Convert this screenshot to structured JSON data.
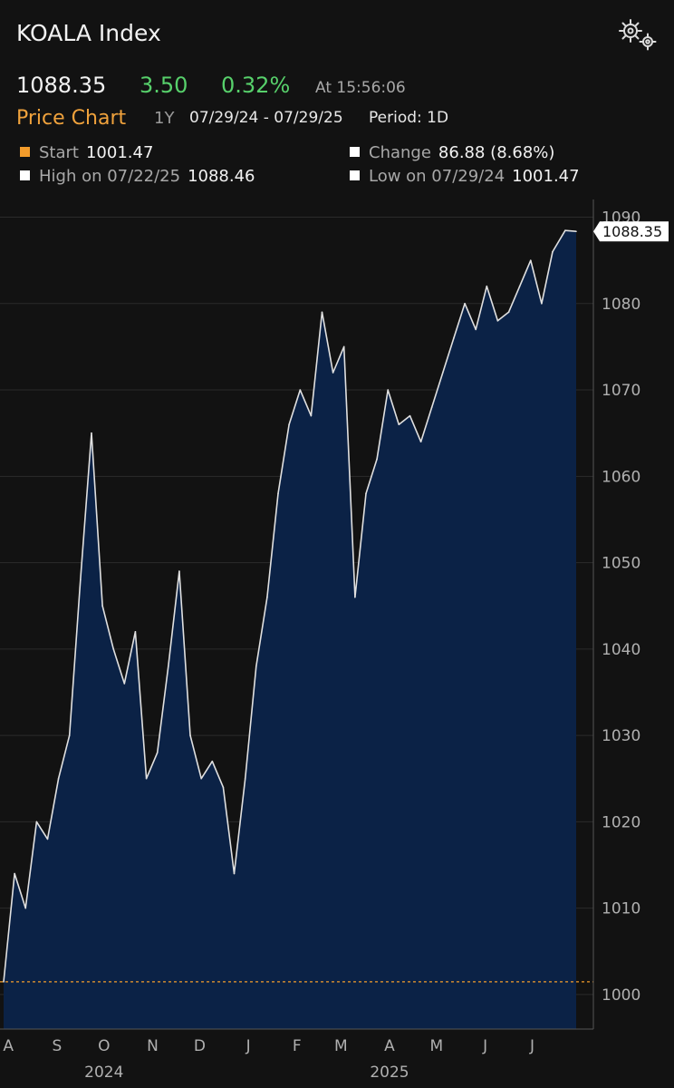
{
  "header": {
    "title": "KOALA Index",
    "settings_icon": "gear-icon"
  },
  "quote": {
    "last": "1088.35",
    "change": "3.50",
    "change_pct": "0.32%",
    "time": "At 15:56:06"
  },
  "subheader": {
    "title": "Price Chart",
    "range": "1Y",
    "dates": "07/29/24 - 07/29/25",
    "period": "Period: 1D"
  },
  "stats": {
    "start_label": "Start",
    "start_value": "1001.47",
    "change_label": "Change",
    "change_value": "86.88 (8.68%)",
    "high_label": "High on 07/22/25",
    "high_value": "1088.46",
    "low_label": "Low on 07/29/24",
    "low_value": "1001.47"
  },
  "colors": {
    "positive": "#57d06b",
    "accent": "#f0a23c",
    "start_marker": "#f39c2b",
    "fill": "#0b2246",
    "line": "#e0e0e0"
  },
  "chart_data": {
    "type": "area",
    "x": [
      "2024-07-29",
      "2024-08-05",
      "2024-08-12",
      "2024-08-19",
      "2024-08-26",
      "2024-09-02",
      "2024-09-09",
      "2024-09-16",
      "2024-09-23",
      "2024-09-30",
      "2024-10-07",
      "2024-10-14",
      "2024-10-21",
      "2024-10-28",
      "2024-11-04",
      "2024-11-11",
      "2024-11-18",
      "2024-11-25",
      "2024-12-02",
      "2024-12-09",
      "2024-12-16",
      "2024-12-23",
      "2024-12-30",
      "2025-01-06",
      "2025-01-13",
      "2025-01-20",
      "2025-01-27",
      "2025-02-03",
      "2025-02-10",
      "2025-02-17",
      "2025-02-24",
      "2025-03-03",
      "2025-03-10",
      "2025-03-17",
      "2025-03-24",
      "2025-03-31",
      "2025-04-07",
      "2025-04-14",
      "2025-04-21",
      "2025-04-28",
      "2025-05-05",
      "2025-05-12",
      "2025-05-19",
      "2025-05-26",
      "2025-06-02",
      "2025-06-09",
      "2025-06-16",
      "2025-06-23",
      "2025-06-30",
      "2025-07-07",
      "2025-07-14",
      "2025-07-22",
      "2025-07-29"
    ],
    "values": [
      1001.47,
      1014,
      1010,
      1020,
      1018,
      1025,
      1030,
      1048,
      1065,
      1045,
      1040,
      1036,
      1042,
      1025,
      1028,
      1038,
      1049,
      1030,
      1025,
      1027,
      1024,
      1014,
      1025,
      1038,
      1046,
      1058,
      1066,
      1070,
      1067,
      1079,
      1072,
      1075,
      1046,
      1058,
      1062,
      1070,
      1066,
      1067,
      1064,
      1068,
      1072,
      1076,
      1080,
      1077,
      1082,
      1078,
      1079,
      1082,
      1085,
      1080,
      1086,
      1088.46,
      1088.35
    ],
    "last_value": 1088.35,
    "reference_line": 1001.47,
    "ylim": [
      996,
      1091
    ],
    "y_ticks": [
      1000,
      1010,
      1020,
      1030,
      1040,
      1050,
      1060,
      1070,
      1080,
      1090
    ],
    "x_tick_labels": [
      {
        "label": "A",
        "date": "2024-08-01"
      },
      {
        "label": "S",
        "date": "2024-09-01"
      },
      {
        "label": "O",
        "date": "2024-10-01"
      },
      {
        "label": "N",
        "date": "2024-11-01"
      },
      {
        "label": "D",
        "date": "2024-12-01"
      },
      {
        "label": "J",
        "date": "2025-01-01"
      },
      {
        "label": "F",
        "date": "2025-02-01"
      },
      {
        "label": "M",
        "date": "2025-03-01"
      },
      {
        "label": "A",
        "date": "2025-04-01"
      },
      {
        "label": "M",
        "date": "2025-05-01"
      },
      {
        "label": "J",
        "date": "2025-06-01"
      },
      {
        "label": "J",
        "date": "2025-07-01"
      }
    ],
    "year_labels": [
      {
        "label": "2024",
        "date": "2024-10-01"
      },
      {
        "label": "2025",
        "date": "2025-04-01"
      }
    ],
    "grid": true
  }
}
